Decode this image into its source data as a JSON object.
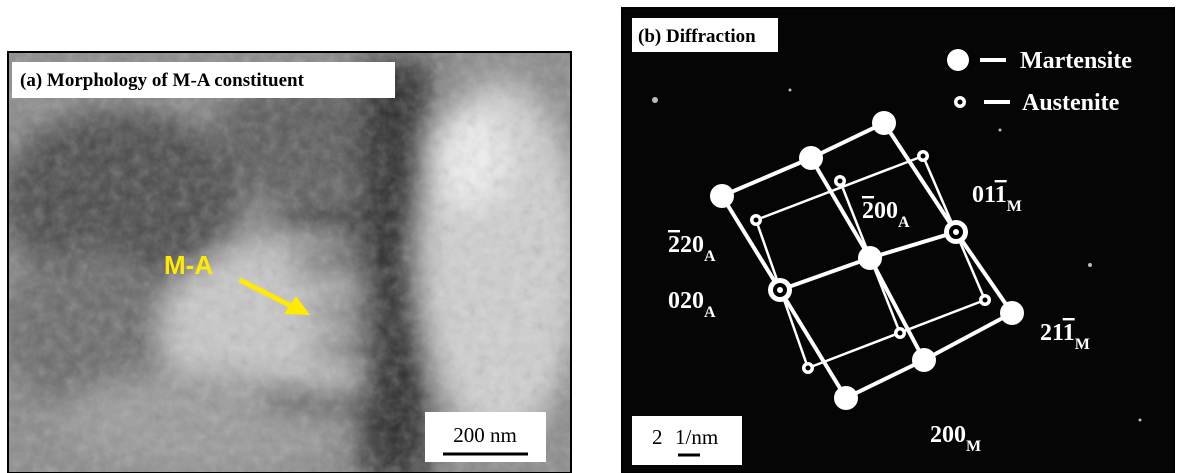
{
  "panel_a": {
    "title": "(a)  Morphology of M-A constituent",
    "annotation": "M-A",
    "scale_bar": "200 nm"
  },
  "panel_b": {
    "title": "(b)  Diffraction",
    "legend": [
      "Martensite",
      "Austenite"
    ],
    "scale_bar": [
      "2",
      "1/nm"
    ],
    "indices": [
      {
        "segments": [
          {
            "text": "2",
            "bar": true
          },
          {
            "text": "20"
          }
        ],
        "sub": "A"
      },
      {
        "segments": [
          {
            "text": "2",
            "bar": true
          },
          {
            "text": "00"
          }
        ],
        "sub": "A"
      },
      {
        "segments": [
          {
            "text": "01"
          },
          {
            "text": "1",
            "bar": true
          }
        ],
        "sub": "M"
      },
      {
        "segments": [
          {
            "text": "020"
          }
        ],
        "sub": "A"
      },
      {
        "segments": [
          {
            "text": "21"
          },
          {
            "text": "1",
            "bar": true
          }
        ],
        "sub": "M"
      },
      {
        "segments": [
          {
            "text": "200"
          }
        ],
        "sub": "M"
      }
    ]
  }
}
